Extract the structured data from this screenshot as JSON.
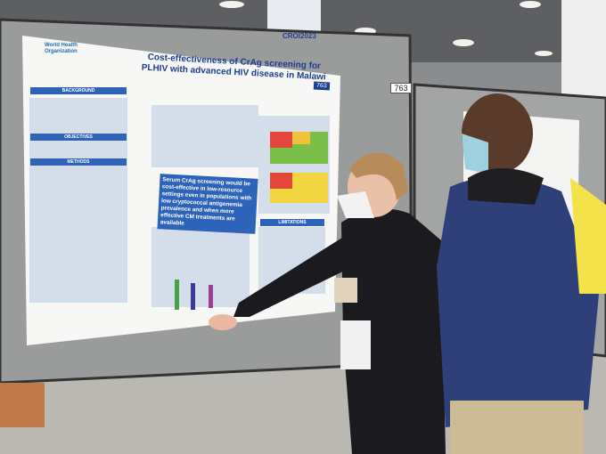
{
  "poster": {
    "organization": "World Health Organization",
    "title": "Cost-effectiveness of CrAg screening for PLHIV with advanced HIV disease in Malawi",
    "board_number": "763",
    "key_message": "Serum CrAg screening would be cost-effective in low-resource settings even in populations with low cryptococcal antigenemia prevalence and when more effective CM treatments are available",
    "sections": [
      "BACKGROUND",
      "OBJECTIVES",
      "METHODS",
      "LIMITATIONS"
    ]
  },
  "banner": {
    "text": "CROI2023"
  },
  "wall_sign": {
    "number": "763"
  }
}
